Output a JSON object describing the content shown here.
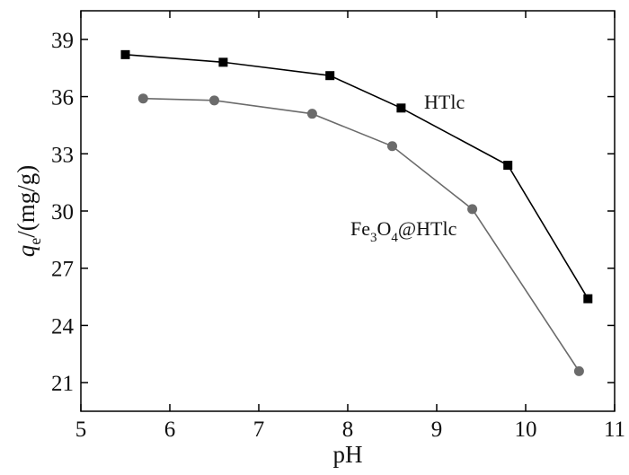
{
  "chart_data": {
    "type": "line",
    "title": "",
    "xlabel": "pH",
    "ylabel": {
      "main": "q",
      "sub": "e",
      "rest": "/(mg/g)"
    },
    "xlim": [
      5,
      11
    ],
    "ylim": [
      19.5,
      40.5
    ],
    "xticks": [
      "5",
      "6",
      "7",
      "8",
      "9",
      "10",
      "11"
    ],
    "yticks": [
      "21",
      "24",
      "27",
      "30",
      "33",
      "36",
      "39"
    ],
    "grid": false,
    "legend": "none",
    "series": [
      {
        "name": "HTlc",
        "marker": "square",
        "color": "#000000",
        "x": [
          5.5,
          6.6,
          7.8,
          8.6,
          9.8,
          10.7
        ],
        "y": [
          38.2,
          37.8,
          37.1,
          35.4,
          32.4,
          25.4
        ]
      },
      {
        "name": "Fe3O4@HTlc",
        "marker": "circle",
        "color": "#6b6b6b",
        "x": [
          5.7,
          6.5,
          7.6,
          8.5,
          9.4,
          10.6
        ],
        "y": [
          35.9,
          35.8,
          35.1,
          33.4,
          30.1,
          21.6
        ]
      }
    ],
    "annotations": {
      "htlc": "HTlc",
      "fe3o4": {
        "p1": "Fe",
        "s1": "3",
        "p2": "O",
        "s2": "4",
        "p3": "@HTlc"
      }
    }
  }
}
